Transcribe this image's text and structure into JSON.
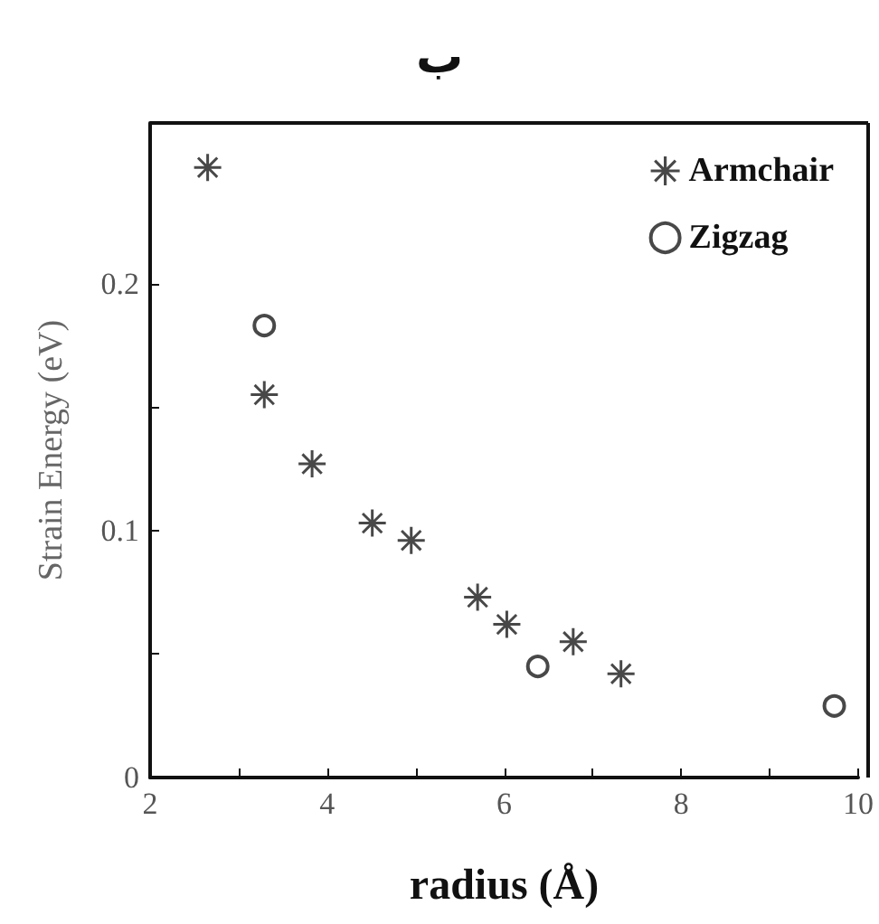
{
  "chart_data": {
    "type": "scatter",
    "title": "ب",
    "xlabel": "radius (Å)",
    "ylabel": "Strain Energy (eV)",
    "xlim": [
      2,
      10
    ],
    "xticks": [
      2,
      {
        "value": 3,
        "label": null
      },
      4,
      {
        "value": 5,
        "label": null
      },
      6,
      {
        "value": 7,
        "label": null
      },
      8,
      {
        "value": 9,
        "label": null
      },
      10
    ],
    "ylim": [
      0,
      0.265
    ],
    "yticks": [
      0,
      {
        "value": 0.05,
        "label": null
      },
      0.1,
      {
        "value": 0.15,
        "label": null
      },
      0.2
    ],
    "legend": "top right",
    "grid": false,
    "series": [
      {
        "name": "Armchair",
        "color": "#1a1a1a",
        "marker": "star",
        "x": [
          2.65,
          3.29,
          3.83,
          4.51,
          4.95,
          5.7,
          6.03,
          6.78,
          7.32
        ],
        "values": [
          0.247,
          0.155,
          0.127,
          0.103,
          0.096,
          0.073,
          0.062,
          0.055,
          0.042
        ]
      },
      {
        "name": "Zigzag",
        "color": "#1a1a1a",
        "marker": "circle",
        "x": [
          3.29,
          6.38,
          9.73
        ],
        "values": [
          0.183,
          0.045,
          0.029
        ]
      }
    ]
  }
}
